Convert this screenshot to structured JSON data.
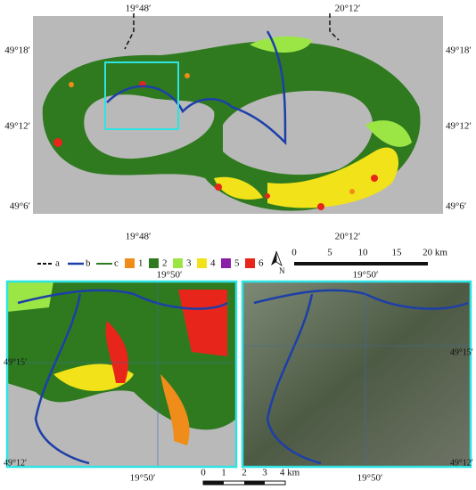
{
  "top_map": {
    "top_labels": [
      "19°48′",
      "20°12′"
    ],
    "bottom_labels": [
      "19°48′",
      "20°12′"
    ],
    "left_labels": [
      "49°18′",
      "49°12′",
      "49°6′"
    ],
    "right_labels": [
      "49°18′",
      "49°12′",
      "49°6′"
    ]
  },
  "legend": {
    "items": [
      "a",
      "b",
      "c",
      "1",
      "2",
      "3",
      "4",
      "5",
      "6"
    ],
    "north": "N"
  },
  "scale_top": [
    "0",
    "5",
    "10",
    "15",
    "20 km"
  ],
  "left_panel": {
    "top_label": "19°50′",
    "bottom_label": "19°50′",
    "left_labels": [
      "49°15′",
      "49°12′"
    ]
  },
  "right_panel": {
    "top_label": "19°50′",
    "bottom_label": "19°50′",
    "right_labels": [
      "49°15′",
      "49°12′"
    ]
  },
  "scale_bottom": [
    "0",
    "1",
    "2",
    "3",
    "4 km"
  ]
}
